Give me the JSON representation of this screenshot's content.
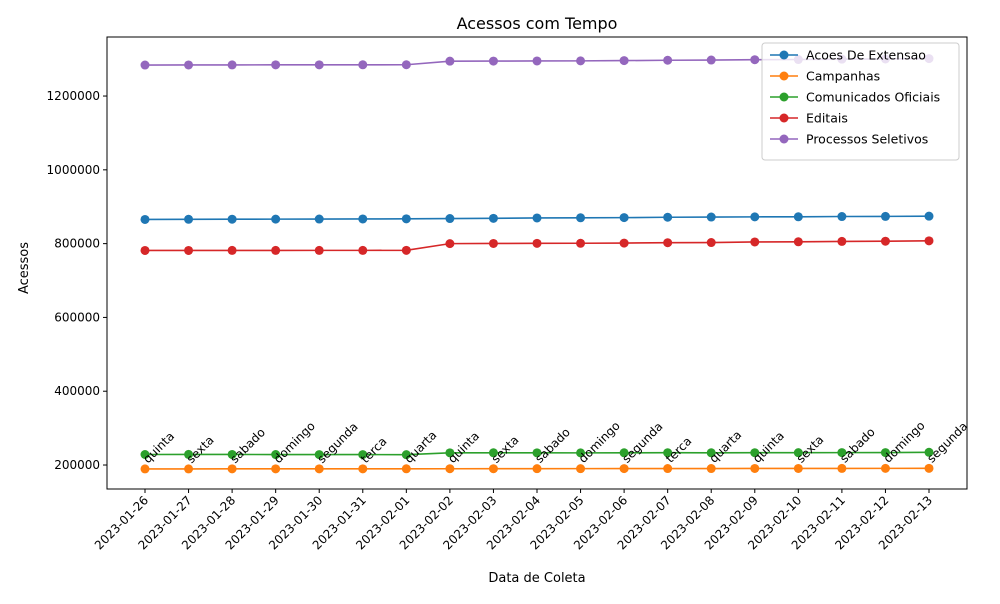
{
  "chart_data": {
    "type": "line",
    "title": "Acessos com Tempo",
    "xlabel": "Data de Coleta",
    "ylabel": "Acessos",
    "ylim": [
      135000,
      1360000
    ],
    "yticks": [
      200000,
      400000,
      600000,
      800000,
      1000000,
      1200000
    ],
    "ytick_labels": [
      "200000",
      "400000",
      "600000",
      "800000",
      "1000000",
      "1200000"
    ],
    "grid": false,
    "legend_position": "top-right",
    "x": [
      "2023-01-26",
      "2023-01-27",
      "2023-01-28",
      "2023-01-29",
      "2023-01-30",
      "2023-01-31",
      "2023-02-01",
      "2023-02-02",
      "2023-02-03",
      "2023-02-04",
      "2023-02-05",
      "2023-02-06",
      "2023-02-07",
      "2023-02-08",
      "2023-02-09",
      "2023-02-10",
      "2023-02-11",
      "2023-02-12",
      "2023-02-13"
    ],
    "weekday_labels": [
      "quinta",
      "sexta",
      "sabado",
      "domingo",
      "segunda",
      "terca",
      "quarta",
      "quinta",
      "sexta",
      "sabado",
      "domingo",
      "segunda",
      "terca",
      "quarta",
      "quinta",
      "sexta",
      "sabado",
      "domingo",
      "segunda"
    ],
    "series": [
      {
        "name": "Acoes De Extensao",
        "color": "#1f77b4",
        "values": [
          865500,
          866000,
          866200,
          866400,
          866600,
          866800,
          867200,
          868000,
          868500,
          869500,
          870000,
          870500,
          871500,
          872000,
          872500,
          872800,
          873500,
          873800,
          874500
        ]
      },
      {
        "name": "Campanhas",
        "color": "#ff7f0e",
        "values": [
          189500,
          189500,
          189600,
          189600,
          189700,
          189700,
          189800,
          189900,
          190000,
          190100,
          190200,
          190300,
          190400,
          190500,
          190600,
          190700,
          190800,
          190900,
          191000
        ]
      },
      {
        "name": "Comunicados Oficiais",
        "color": "#2ca02c",
        "values": [
          228500,
          228700,
          228600,
          228400,
          228300,
          228200,
          228100,
          233000,
          233200,
          233000,
          232900,
          233100,
          233300,
          233200,
          233400,
          233500,
          233600,
          233700,
          234500
        ]
      },
      {
        "name": "Editais",
        "color": "#d62728",
        "values": [
          781500,
          781500,
          781600,
          781600,
          781700,
          781700,
          781800,
          800000,
          800500,
          800800,
          801000,
          801500,
          802500,
          803000,
          804500,
          805000,
          806000,
          806500,
          807500
        ]
      },
      {
        "name": "Processos Seletivos",
        "color": "#9467bd",
        "values": [
          1284000,
          1284200,
          1284400,
          1284500,
          1284600,
          1284700,
          1284800,
          1294500,
          1294700,
          1295000,
          1295300,
          1296000,
          1297000,
          1297500,
          1298500,
          1299000,
          1300000,
          1300500,
          1301500
        ]
      }
    ]
  }
}
